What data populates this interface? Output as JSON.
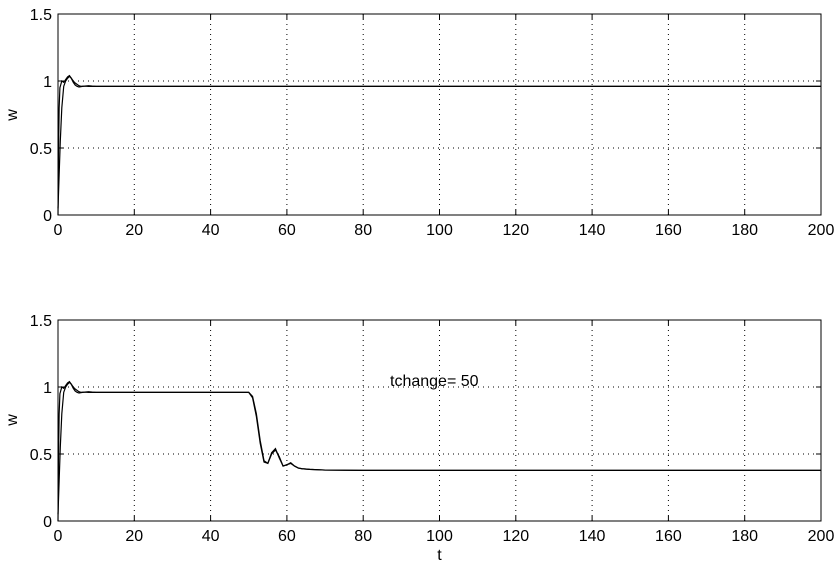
{
  "chart_data": [
    {
      "type": "line",
      "title": "",
      "xlabel": "",
      "ylabel": "w",
      "xlim": [
        0,
        200
      ],
      "ylim": [
        0,
        1.5
      ],
      "xticks": [
        "0",
        "20",
        "40",
        "60",
        "80",
        "100",
        "120",
        "140",
        "160",
        "180",
        "200"
      ],
      "yticks": [
        "0",
        "0.5",
        "1",
        "1.5"
      ],
      "grid": true,
      "annotation": "",
      "series": [
        {
          "x": [
            0,
            0.3,
            0.6,
            1,
            1.5,
            2,
            2.5,
            3,
            3.5,
            4,
            4.5,
            5,
            5.5,
            6,
            7,
            8,
            9,
            10,
            15,
            20,
            50,
            100,
            150,
            200
          ],
          "y": [
            0.05,
            0.3,
            0.55,
            0.8,
            0.96,
            1.0,
            1.02,
            1.035,
            1.02,
            1.0,
            0.985,
            0.975,
            0.965,
            0.96,
            0.962,
            0.965,
            0.962,
            0.96,
            0.96,
            0.96,
            0.96,
            0.96,
            0.96,
            0.96
          ]
        },
        {
          "x": [
            0,
            0.15,
            0.3,
            0.5,
            1,
            1.5,
            2,
            2.5,
            3,
            3.5,
            4,
            4.5,
            5,
            5.5,
            6,
            7,
            8,
            9,
            10,
            15,
            20,
            50,
            100,
            150,
            200
          ],
          "y": [
            0.0,
            0.5,
            0.8,
            0.95,
            1.0,
            0.99,
            1.01,
            1.03,
            1.04,
            1.02,
            0.99,
            0.97,
            0.96,
            0.955,
            0.958,
            0.962,
            0.96,
            0.96,
            0.96,
            0.96,
            0.96,
            0.96,
            0.96,
            0.96,
            0.96
          ]
        }
      ]
    },
    {
      "type": "line",
      "title": "",
      "xlabel": "t",
      "ylabel": "w",
      "xlim": [
        0,
        200
      ],
      "ylim": [
        0,
        1.5
      ],
      "xticks": [
        "0",
        "20",
        "40",
        "60",
        "80",
        "100",
        "120",
        "140",
        "160",
        "180",
        "200"
      ],
      "yticks": [
        "0",
        "0.5",
        "1",
        "1.5"
      ],
      "grid": true,
      "annotation": "tchange= 50",
      "series": [
        {
          "x": [
            0,
            0.3,
            0.6,
            1,
            1.5,
            2,
            2.5,
            3,
            3.5,
            4,
            4.5,
            5,
            5.5,
            6,
            7,
            8,
            9,
            10,
            20,
            40,
            50,
            51,
            52,
            53,
            54,
            55,
            56,
            57,
            58,
            59,
            60,
            61,
            62,
            63,
            64,
            66,
            70,
            80,
            100,
            150,
            200
          ],
          "y": [
            0.05,
            0.3,
            0.55,
            0.8,
            0.96,
            1.0,
            1.02,
            1.035,
            1.02,
            1.0,
            0.985,
            0.975,
            0.965,
            0.96,
            0.962,
            0.965,
            0.962,
            0.96,
            0.96,
            0.96,
            0.96,
            0.93,
            0.8,
            0.6,
            0.45,
            0.43,
            0.5,
            0.53,
            0.48,
            0.41,
            0.42,
            0.43,
            0.41,
            0.395,
            0.39,
            0.385,
            0.38,
            0.378,
            0.378,
            0.378,
            0.378
          ]
        },
        {
          "x": [
            0,
            0.15,
            0.3,
            0.5,
            1,
            1.5,
            2,
            2.5,
            3,
            3.5,
            4,
            4.5,
            5,
            5.5,
            6,
            7,
            8,
            9,
            10,
            20,
            40,
            50,
            51,
            52,
            53,
            54,
            55,
            56,
            57,
            58,
            59,
            60,
            61,
            62,
            63,
            64,
            66,
            70,
            80,
            100,
            150,
            200
          ],
          "y": [
            0.0,
            0.5,
            0.8,
            0.95,
            1.0,
            0.99,
            1.01,
            1.03,
            1.04,
            1.02,
            0.99,
            0.97,
            0.96,
            0.955,
            0.958,
            0.962,
            0.96,
            0.96,
            0.96,
            0.96,
            0.96,
            0.96,
            0.92,
            0.78,
            0.58,
            0.44,
            0.43,
            0.51,
            0.54,
            0.47,
            0.41,
            0.42,
            0.435,
            0.41,
            0.395,
            0.39,
            0.385,
            0.38,
            0.378,
            0.378,
            0.378,
            0.378
          ]
        }
      ]
    }
  ]
}
